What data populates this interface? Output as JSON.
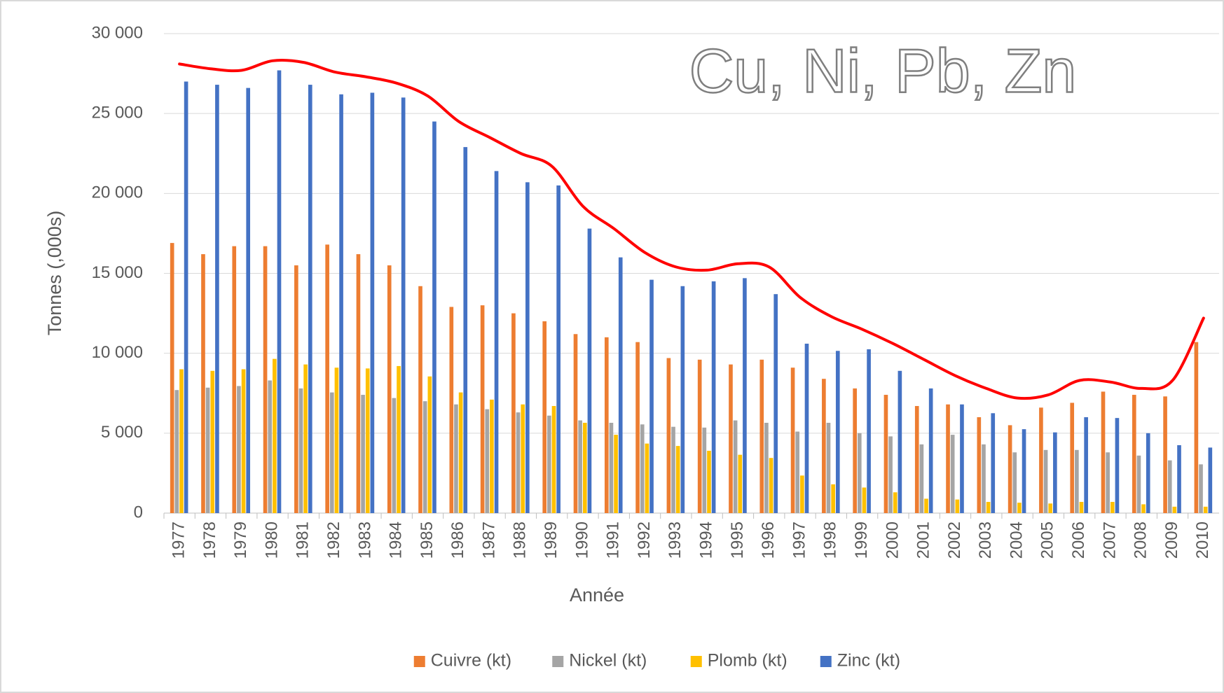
{
  "chart_data": {
    "type": "bar",
    "title": "Cu, Ni, Pb, Zn",
    "x_label": "Année",
    "y_label": "Tonnes (,000s)",
    "categories": [
      "1977",
      "1978",
      "1979",
      "1980",
      "1981",
      "1982",
      "1983",
      "1984",
      "1985",
      "1986",
      "1987",
      "1988",
      "1989",
      "1990",
      "1991",
      "1992",
      "1993",
      "1994",
      "1995",
      "1996",
      "1997",
      "1998",
      "1999",
      "2000",
      "2001",
      "2002",
      "2003",
      "2004",
      "2005",
      "2006",
      "2007",
      "2008",
      "2009",
      "2010"
    ],
    "series": [
      {
        "name": "Cuivre (kt)",
        "color": "#ed7d31",
        "values": [
          16900,
          16200,
          16700,
          16700,
          15500,
          16800,
          16200,
          15500,
          14200,
          12900,
          13000,
          12500,
          12000,
          11200,
          11000,
          10700,
          9700,
          9600,
          9300,
          9600,
          9100,
          8400,
          7800,
          7400,
          6700,
          6800,
          6000,
          5500,
          6600,
          6900,
          7600,
          7400,
          7300,
          10700
        ]
      },
      {
        "name": "Nickel (kt)",
        "color": "#a5a5a5",
        "values": [
          7700,
          7850,
          7950,
          8300,
          7800,
          7550,
          7400,
          7200,
          7000,
          6800,
          6500,
          6300,
          6100,
          5800,
          5650,
          5550,
          5400,
          5350,
          5800,
          5650,
          5100,
          5650,
          5000,
          4800,
          4300,
          4900,
          4300,
          3800,
          3950,
          3950,
          3800,
          3600,
          3300,
          3050
        ]
      },
      {
        "name": "Plomb (kt)",
        "color": "#ffc000",
        "values": [
          9000,
          8900,
          9000,
          9650,
          9300,
          9100,
          9050,
          9200,
          8550,
          7550,
          7100,
          6800,
          6700,
          5650,
          4900,
          4350,
          4200,
          3900,
          3650,
          3450,
          2350,
          1800,
          1600,
          1300,
          900,
          850,
          700,
          650,
          600,
          700,
          700,
          550,
          400,
          400
        ]
      },
      {
        "name": "Zinc (kt)",
        "color": "#4472c4",
        "values": [
          27000,
          26800,
          26600,
          27700,
          26800,
          26200,
          26300,
          26000,
          24500,
          22900,
          21400,
          20700,
          20500,
          17800,
          16000,
          14600,
          14200,
          14500,
          14700,
          13700,
          10600,
          10150,
          10250,
          8900,
          7800,
          6800,
          6250,
          5250,
          5050,
          6000,
          5950,
          5000,
          4250,
          4100
        ]
      }
    ],
    "trend": {
      "color": "#ff0000",
      "values": [
        28100,
        27800,
        27700,
        28300,
        28200,
        27600,
        27300,
        26900,
        26100,
        24500,
        23500,
        22500,
        21700,
        19200,
        17800,
        16300,
        15400,
        15200,
        15600,
        15400,
        13500,
        12300,
        11500,
        10600,
        9600,
        8600,
        7800,
        7200,
        7400,
        8300,
        8200,
        7800,
        8300,
        12200
      ]
    },
    "ylim": [
      0,
      30000
    ],
    "yticks": [
      0,
      {
        "value": 5000,
        "label": "5 000"
      },
      {
        "value": 10000,
        "label": "10 000"
      },
      {
        "value": 15000,
        "label": "15 000"
      },
      {
        "value": 20000,
        "label": "20 000"
      },
      {
        "value": 25000,
        "label": "25 000"
      },
      {
        "value": 30000,
        "label": "30 000"
      }
    ],
    "grid": true,
    "legend": "bottom"
  }
}
